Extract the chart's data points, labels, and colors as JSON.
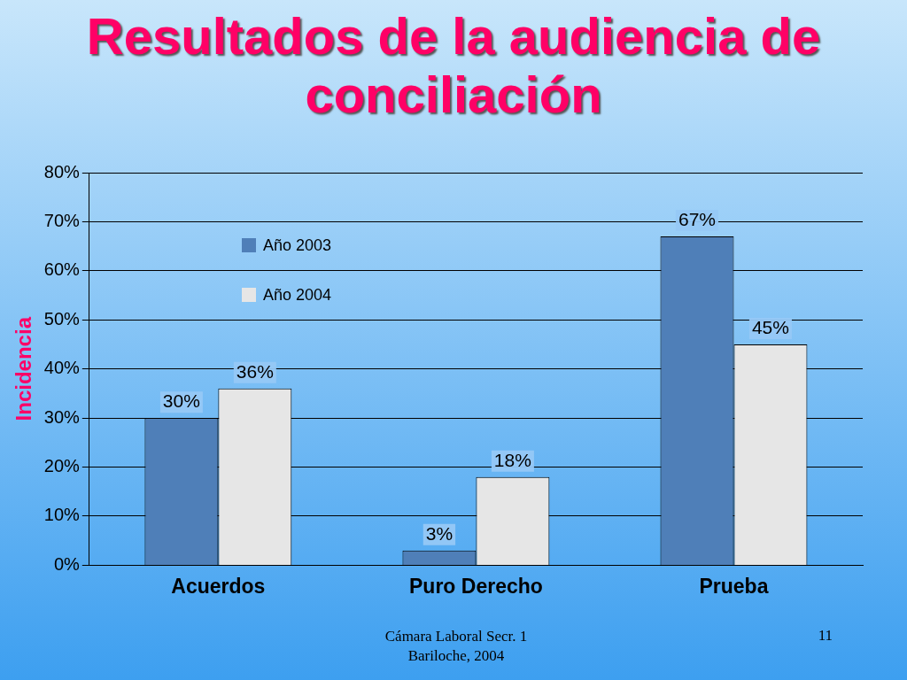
{
  "chart_data": {
    "type": "bar",
    "title": "Resultados de la audiencia de conciliación",
    "ylabel": "Incidencia",
    "categories": [
      "Acuerdos",
      "Puro Derecho",
      "Prueba"
    ],
    "series": [
      {
        "name": "Año 2003",
        "color": "#4f7fb8",
        "values": [
          30,
          3,
          67
        ],
        "value_labels": [
          "30%",
          "3%",
          "67%"
        ]
      },
      {
        "name": "Año 2004",
        "color": "#e6e6e6",
        "values": [
          36,
          18,
          45
        ],
        "value_labels": [
          "36%",
          "18%",
          "45%"
        ]
      }
    ],
    "ylim": [
      0,
      80
    ],
    "yticks": [
      {
        "value": 0,
        "label": "0%"
      },
      {
        "value": 10,
        "label": "10%"
      },
      {
        "value": 20,
        "label": "20%"
      },
      {
        "value": 30,
        "label": "30%"
      },
      {
        "value": 40,
        "label": "40%"
      },
      {
        "value": 50,
        "label": "50%"
      },
      {
        "value": 60,
        "label": "60%"
      },
      {
        "value": 70,
        "label": "70%"
      },
      {
        "value": 80,
        "label": "80%"
      }
    ],
    "grid": "y",
    "legend": "top left",
    "annotations": [
      "Cámara Laboral Secr. 1 Bariloche, 2004",
      "11"
    ]
  }
}
